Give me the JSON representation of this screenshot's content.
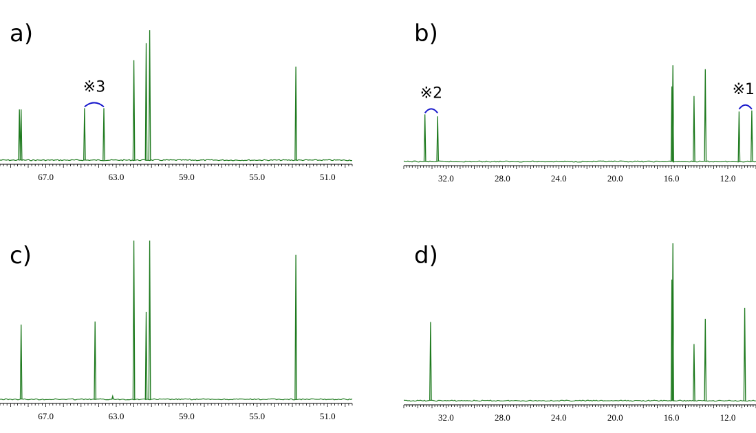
{
  "chart_data": [
    {
      "type": "line",
      "panel_label": "a)",
      "xlim": [
        69.6,
        49.6
      ],
      "x_ticks": [
        67.0,
        63.0,
        59.0,
        55.0,
        51.0
      ],
      "x_tick_labels": [
        "67.0",
        "63.0",
        "59.0",
        "55.0",
        "51.0"
      ],
      "peaks": [
        {
          "x": 68.5,
          "height": 0.39
        },
        {
          "x": 68.4,
          "height": 0.39
        },
        {
          "x": 64.8,
          "height": 0.4
        },
        {
          "x": 63.7,
          "height": 0.4
        },
        {
          "x": 62.0,
          "height": 0.77
        },
        {
          "x": 61.3,
          "height": 0.9
        },
        {
          "x": 61.1,
          "height": 1.0
        },
        {
          "x": 52.8,
          "height": 0.72
        }
      ],
      "annotations": [
        {
          "label": "※3",
          "x_start": 64.8,
          "x_end": 63.7
        }
      ]
    },
    {
      "type": "line",
      "panel_label": "b)",
      "xlim": [
        35.0,
        10.0
      ],
      "x_ticks": [
        32.0,
        28.0,
        24.0,
        20.0,
        16.0,
        12.0
      ],
      "x_tick_labels": [
        "32.0",
        "28.0",
        "24.0",
        "20.0",
        "16.0",
        "12.0"
      ],
      "peaks": [
        {
          "x": 33.5,
          "height": 0.49
        },
        {
          "x": 32.6,
          "height": 0.47
        },
        {
          "x": 15.97,
          "height": 0.78
        },
        {
          "x": 15.9,
          "height": 1.0
        },
        {
          "x": 14.4,
          "height": 0.68
        },
        {
          "x": 13.6,
          "height": 0.96
        },
        {
          "x": 11.2,
          "height": 0.52
        },
        {
          "x": 10.3,
          "height": 0.53
        }
      ],
      "annotations": [
        {
          "label": "※2",
          "x_start": 33.5,
          "x_end": 32.6
        },
        {
          "label": "※1",
          "x_start": 11.2,
          "x_end": 10.3
        }
      ]
    },
    {
      "type": "line",
      "panel_label": "c)",
      "xlim": [
        69.6,
        49.6
      ],
      "x_ticks": [
        67.0,
        63.0,
        59.0,
        55.0,
        51.0
      ],
      "x_tick_labels": [
        "67.0",
        "63.0",
        "59.0",
        "55.0",
        "51.0"
      ],
      "peaks": [
        {
          "x": 68.4,
          "height": 0.47
        },
        {
          "x": 64.2,
          "height": 0.49
        },
        {
          "x": 63.2,
          "height": 0.02
        },
        {
          "x": 62.0,
          "height": 1.0
        },
        {
          "x": 61.3,
          "height": 0.55
        },
        {
          "x": 61.1,
          "height": 1.0
        },
        {
          "x": 52.8,
          "height": 0.91
        }
      ]
    },
    {
      "type": "line",
      "panel_label": "d)",
      "xlim": [
        35.0,
        10.0
      ],
      "x_ticks": [
        32.0,
        28.0,
        24.0,
        20.0,
        16.0,
        12.0
      ],
      "x_tick_labels": [
        "32.0",
        "28.0",
        "24.0",
        "20.0",
        "16.0",
        "12.0"
      ],
      "peaks": [
        {
          "x": 33.1,
          "height": 0.5
        },
        {
          "x": 15.97,
          "height": 0.77
        },
        {
          "x": 15.9,
          "height": 1.0
        },
        {
          "x": 14.4,
          "height": 0.36
        },
        {
          "x": 13.6,
          "height": 0.52
        },
        {
          "x": 10.8,
          "height": 0.59
        }
      ]
    }
  ],
  "colors": {
    "spectrum": "#1e7a1e",
    "annotation_arc": "#1a1acc",
    "axis": "#000000"
  }
}
